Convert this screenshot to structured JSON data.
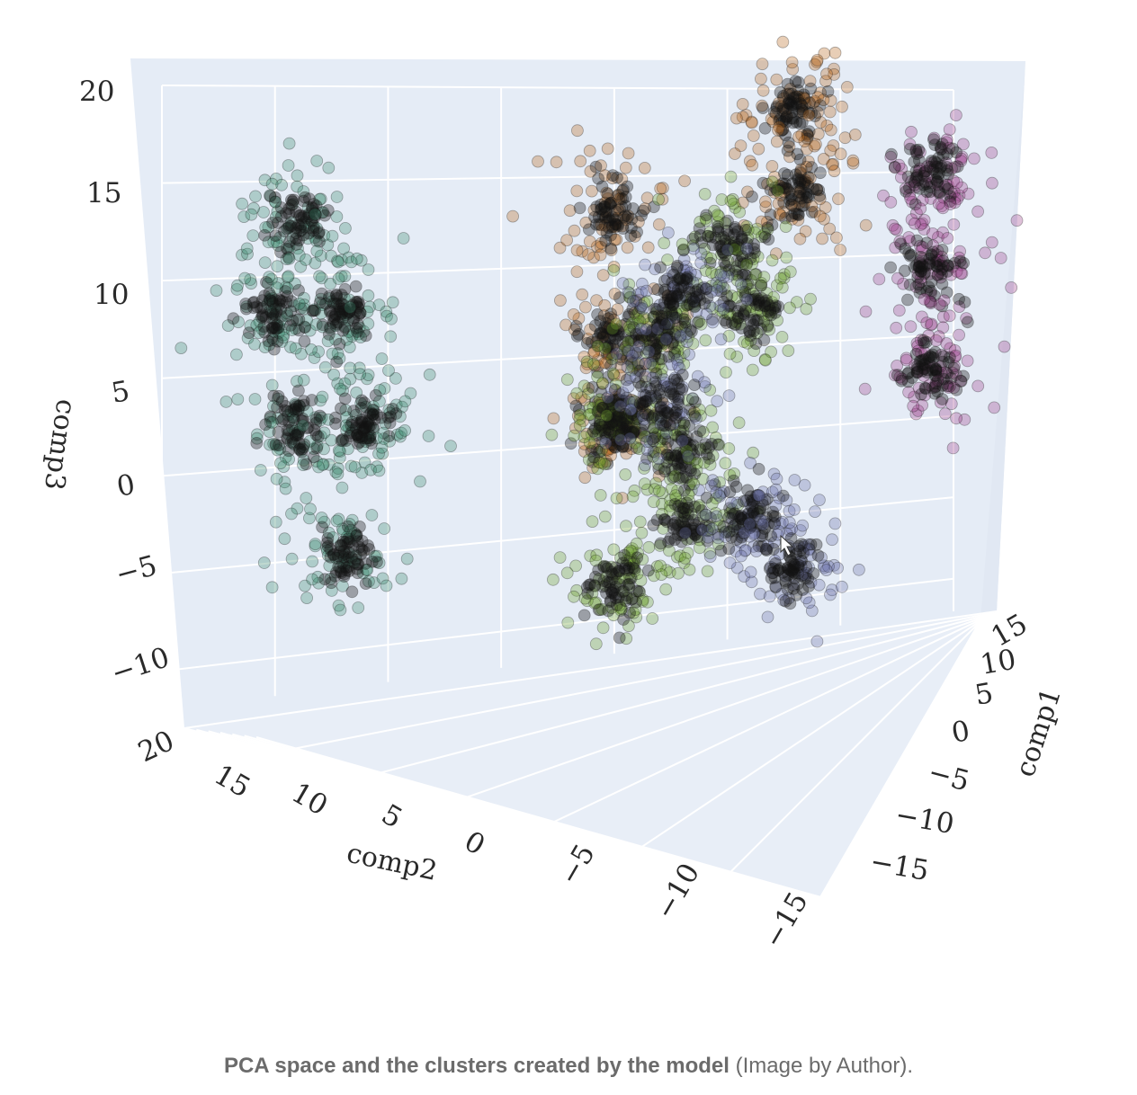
{
  "caption": {
    "bold": "PCA space and the clusters created by the model",
    "normal": " (Image by Author)."
  },
  "chart_data": {
    "type": "scatter3d",
    "title": "",
    "axes": {
      "x": {
        "label": "comp1",
        "ticks": [
          "15",
          "10",
          "5",
          "0",
          "−5",
          "−10",
          "−15"
        ]
      },
      "y": {
        "label": "comp2",
        "ticks": [
          "20",
          "15",
          "10",
          "5",
          "0",
          "−5",
          "−10",
          "−15"
        ]
      },
      "z": {
        "label": "comp3",
        "ticks": [
          "20",
          "15",
          "10",
          "5",
          "0",
          "−5",
          "−10"
        ]
      }
    },
    "colors": {
      "teal": "#3a8a6e",
      "orange": "#b8661c",
      "green": "#6e9e2a",
      "purple": "#6b6fa8",
      "magenta": "#9a3d8a",
      "pane": "#e5ecf6",
      "grid": "#ffffff"
    },
    "clusters": [
      {
        "name": "teal",
        "color": "#3a8a6e",
        "centers_comp2_comp3": [
          [
            14,
            13
          ],
          [
            15,
            8
          ],
          [
            12,
            8
          ],
          [
            14,
            2
          ],
          [
            11,
            2
          ],
          [
            12,
            -5
          ]
        ]
      },
      {
        "name": "orange",
        "color": "#b8661c",
        "centers_comp2_comp3": [
          [
            -8,
            19
          ],
          [
            -8,
            14
          ],
          [
            0,
            13
          ],
          [
            0,
            6
          ],
          [
            0,
            1
          ]
        ]
      },
      {
        "name": "green",
        "color": "#6e9e2a",
        "centers_comp2_comp3": [
          [
            -5,
            11
          ],
          [
            -6,
            7
          ],
          [
            -2,
            6
          ],
          [
            0,
            1
          ],
          [
            -3,
            -1
          ],
          [
            -3,
            -5
          ],
          [
            0,
            -8
          ]
        ]
      },
      {
        "name": "purple",
        "color": "#6b6fa8",
        "centers_comp2_comp3": [
          [
            -3,
            8
          ],
          [
            -2,
            2
          ],
          [
            -6,
            -5
          ],
          [
            -8,
            -8
          ]
        ]
      },
      {
        "name": "magenta",
        "color": "#9a3d8a",
        "centers_comp2_comp3": [
          [
            -14,
            15
          ],
          [
            -14,
            9
          ],
          [
            -14,
            3
          ]
        ]
      }
    ]
  }
}
